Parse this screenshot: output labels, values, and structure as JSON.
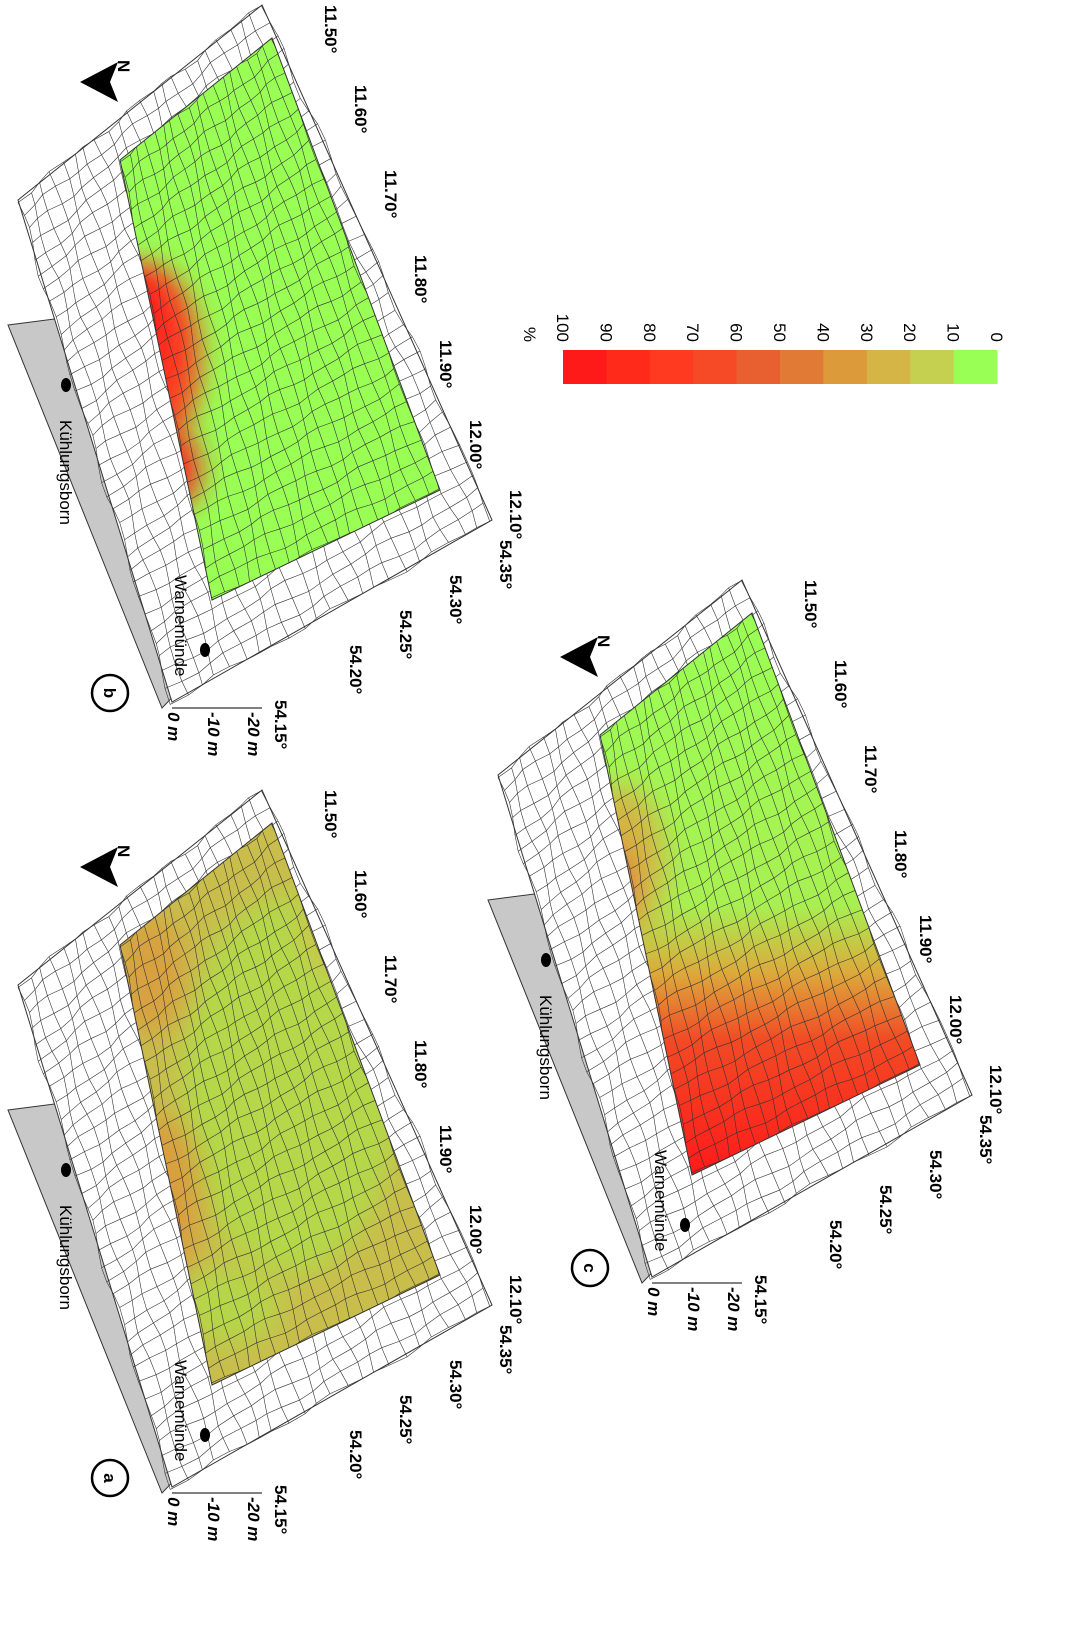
{
  "panels": [
    {
      "label": "a",
      "towns": [
        "Kühlungsborn",
        "Warnemünde"
      ],
      "depth_labels": [
        "0 m",
        "-10 m",
        "-20 m"
      ],
      "lat_labels": [
        "54.15°",
        "54.20°",
        "54.25°",
        "54.30°",
        "54.35°"
      ],
      "lon_labels": [
        "12.10°",
        "12.00°",
        "11.90°",
        "11.80°",
        "11.70°",
        "11.60°",
        "11.50°"
      ],
      "north": "N"
    },
    {
      "label": "b",
      "towns": [
        "Kühlungsborn",
        "Warnemünde"
      ],
      "depth_labels": [
        "0 m",
        "-10 m",
        "-20 m"
      ],
      "lat_labels": [
        "54.15°",
        "54.20°",
        "54.25°",
        "54.30°",
        "54.35°"
      ],
      "lon_labels": [
        "12.10°",
        "12.00°",
        "11.90°",
        "11.80°",
        "11.70°",
        "11.60°",
        "11.50°"
      ],
      "north": "N"
    },
    {
      "label": "c",
      "towns": [
        "Kühlungsborn",
        "Warnemünde"
      ],
      "depth_labels": [
        "0 m",
        "-10 m",
        "-20 m"
      ],
      "lat_labels": [
        "54.15°",
        "54.20°",
        "54.25°",
        "54.30°",
        "54.35°"
      ],
      "lon_labels": [
        "12.10°",
        "12.00°",
        "11.90°",
        "11.80°",
        "11.70°",
        "11.60°",
        "11.50°"
      ],
      "north": "N"
    }
  ],
  "legend": {
    "title": "%",
    "ticks": [
      100,
      90,
      80,
      70,
      60,
      50,
      40,
      30,
      20,
      10,
      0
    ],
    "colors": [
      "#ff1a1a",
      "#ff2a1a",
      "#ff3a20",
      "#f54a25",
      "#e86030",
      "#e07a35",
      "#dc9a3a",
      "#d4b545",
      "#c5d050",
      "#99ff55"
    ]
  }
}
